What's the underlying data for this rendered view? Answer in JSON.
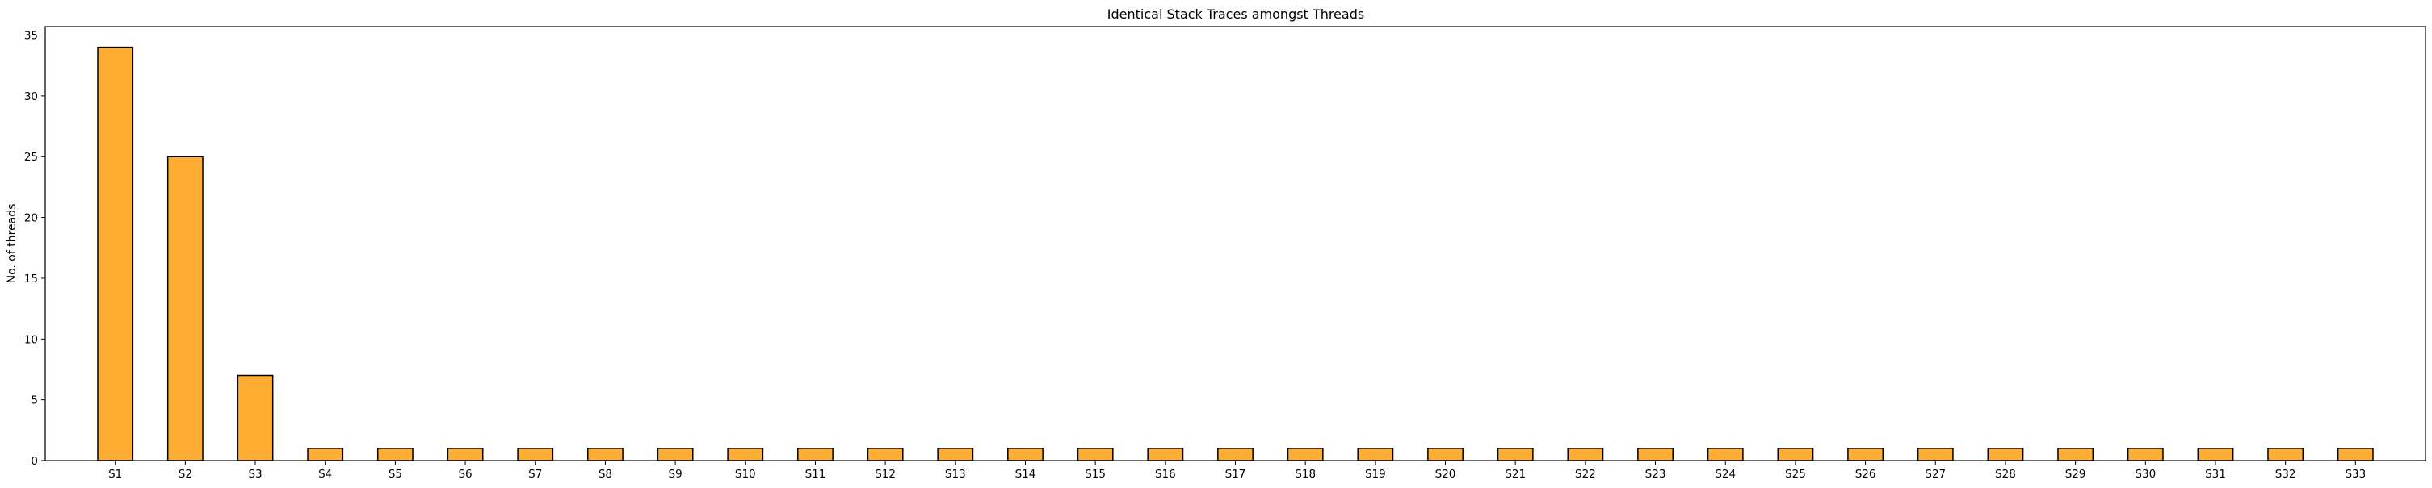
{
  "chart_data": {
    "type": "bar",
    "title": "Identical Stack Traces amongst Threads",
    "xlabel": "",
    "ylabel": "No. of threads",
    "categories": [
      "S1",
      "S2",
      "S3",
      "S4",
      "S5",
      "S6",
      "S7",
      "S8",
      "S9",
      "S10",
      "S11",
      "S12",
      "S13",
      "S14",
      "S15",
      "S16",
      "S17",
      "S18",
      "S19",
      "S20",
      "S21",
      "S22",
      "S23",
      "S24",
      "S25",
      "S26",
      "S27",
      "S28",
      "S29",
      "S30",
      "S31",
      "S32",
      "S33"
    ],
    "values": [
      34,
      25,
      7,
      1,
      1,
      1,
      1,
      1,
      1,
      1,
      1,
      1,
      1,
      1,
      1,
      1,
      1,
      1,
      1,
      1,
      1,
      1,
      1,
      1,
      1,
      1,
      1,
      1,
      1,
      1,
      1,
      1,
      1
    ],
    "ylim": [
      0,
      35.7
    ],
    "yticks": [
      0,
      5,
      10,
      15,
      20,
      25,
      30,
      35
    ],
    "grid": false,
    "legend": "none",
    "bar_color": "#FFAE33",
    "bar_edge_color": "#000000"
  }
}
